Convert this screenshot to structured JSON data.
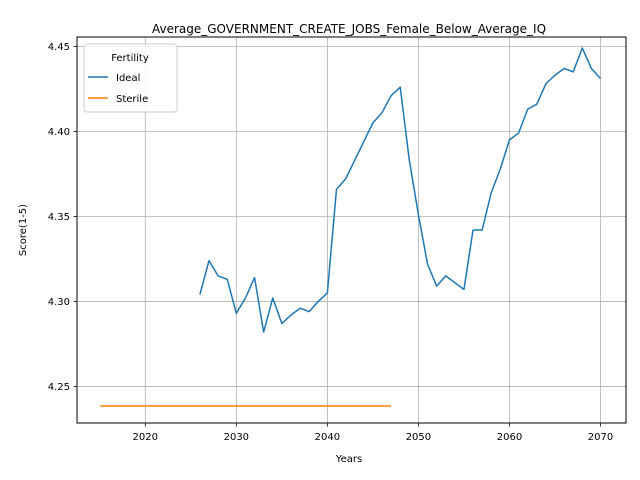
{
  "chart_data": {
    "type": "line",
    "title": "Average_GOVERNMENT_CREATE_JOBS_Female_Below_Average_IQ",
    "xlabel": "Years",
    "ylabel": "Score(1-5)",
    "xlim": [
      2012.5,
      2072.8
    ],
    "ylim": [
      4.2285,
      4.4555
    ],
    "xticks": [
      2020,
      2030,
      2040,
      2050,
      2060,
      2070
    ],
    "xtick_labels": [
      "2020",
      "2030",
      "2040",
      "2050",
      "2060",
      "2070"
    ],
    "yticks": [
      4.25,
      4.3,
      4.35,
      4.4,
      4.45
    ],
    "ytick_labels": [
      "4.25",
      "4.30",
      "4.35",
      "4.40",
      "4.45"
    ],
    "grid": true,
    "legend": {
      "title": "Fertility",
      "placement": "upper-left"
    },
    "series": [
      {
        "name": "Ideal",
        "color": "#1f77b4",
        "x": [
          2026,
          2027,
          2028,
          2029,
          2030,
          2031,
          2032,
          2033,
          2034,
          2035,
          2036,
          2037,
          2038,
          2039,
          2040,
          2041,
          2042,
          2043,
          2044,
          2045,
          2046,
          2047,
          2048,
          2049,
          2050,
          2051,
          2052,
          2053,
          2054,
          2055,
          2056,
          2057,
          2058,
          2059,
          2060,
          2061,
          2062,
          2063,
          2064,
          2065,
          2066,
          2067,
          2068,
          2069,
          2070
        ],
        "y": [
          4.304,
          4.324,
          4.315,
          4.313,
          4.293,
          4.302,
          4.314,
          4.282,
          4.302,
          4.287,
          4.292,
          4.296,
          4.294,
          4.3,
          4.305,
          4.366,
          4.372,
          4.383,
          4.394,
          4.405,
          4.411,
          4.421,
          4.426,
          4.383,
          4.351,
          4.322,
          4.309,
          4.315,
          4.311,
          4.307,
          4.342,
          4.342,
          4.364,
          4.378,
          4.395,
          4.399,
          4.413,
          4.416,
          4.428,
          4.433,
          4.437,
          4.435,
          4.449,
          4.437,
          4.431
        ]
      },
      {
        "name": "Sterile",
        "color": "#ff7f0e",
        "x": [
          2015,
          2047
        ],
        "y": [
          4.2385,
          4.2385
        ]
      }
    ]
  }
}
